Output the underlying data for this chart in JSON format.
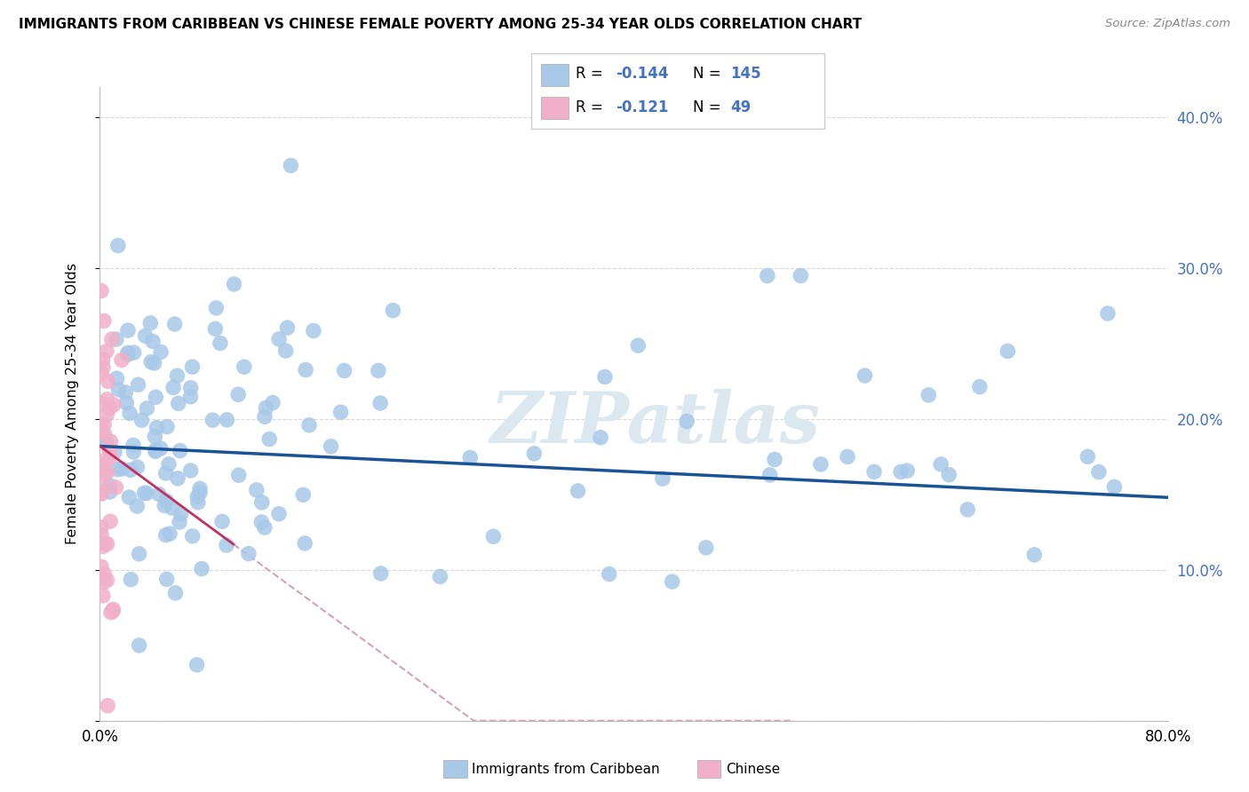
{
  "title": "IMMIGRANTS FROM CARIBBEAN VS CHINESE FEMALE POVERTY AMONG 25-34 YEAR OLDS CORRELATION CHART",
  "source": "Source: ZipAtlas.com",
  "ylabel": "Female Poverty Among 25-34 Year Olds",
  "xlim": [
    0.0,
    0.8
  ],
  "ylim": [
    0.0,
    0.42
  ],
  "legend_label1": "Immigrants from Caribbean",
  "legend_label2": "Chinese",
  "R1": "-0.144",
  "N1": "145",
  "R2": "-0.121",
  "N2": "49",
  "blue_scatter_color": "#a8c8e8",
  "pink_scatter_color": "#f0b0c8",
  "blue_line_color": "#1a5296",
  "pink_line_color": "#c03060",
  "pink_dash_color": "#d8a0b8",
  "right_tick_color": "#4472c4",
  "watermark_color": "#dce8f0",
  "seed": 17,
  "carib_intercept": 0.182,
  "carib_slope": -0.038,
  "carib_noise": 0.05,
  "chinese_intercept": 0.178,
  "chinese_slope": -0.6,
  "chinese_noise": 0.055
}
